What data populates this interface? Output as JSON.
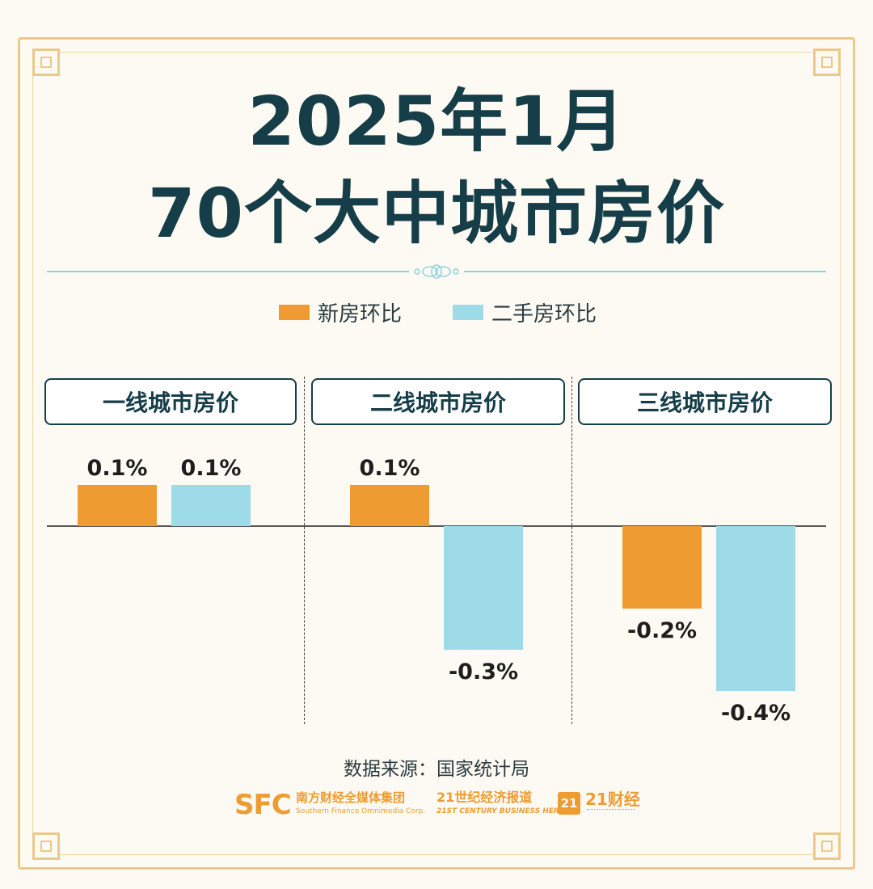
{
  "title_line1": "2025年1月",
  "title_line2": "70个大中城市房价",
  "legend": [
    {
      "label": "新房环比",
      "color": "#ee9b32"
    },
    {
      "label": "二手房环比",
      "color": "#9ddbe8"
    }
  ],
  "source": "数据来源：国家统计局",
  "logos": {
    "sfc": "SFC",
    "sfc_cn": "南方财经全媒体集团",
    "sfc_en": "Southern Finance Omnimedia Corp.",
    "herald_cn": "21世纪经济报道",
    "herald_en": "21ST CENTURY BUSINESS HERALD",
    "cj_badge": "21",
    "cj_name": "21财经"
  },
  "chart_data": {
    "type": "bar",
    "categories": [
      "一线城市房价",
      "二线城市房价",
      "三线城市房价"
    ],
    "series": [
      {
        "name": "新房环比",
        "values": [
          0.1,
          0.1,
          -0.2
        ],
        "labels": [
          "0.1%",
          "0.1%",
          "-0.2%"
        ],
        "color": "#ee9b32"
      },
      {
        "name": "二手房环比",
        "values": [
          0.1,
          -0.3,
          -0.4
        ],
        "labels": [
          "0.1%",
          "-0.3%",
          "-0.4%"
        ],
        "color": "#9ddbe8"
      }
    ],
    "unit": "%",
    "ylim": [
      -0.4,
      0.1
    ],
    "grid": false,
    "legend_position": "top-center"
  }
}
